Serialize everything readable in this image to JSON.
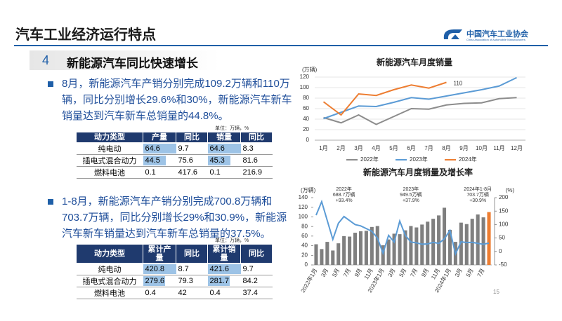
{
  "header": {
    "title": "汽车工业经济运行特点",
    "logo": "中国汽车工业协会",
    "logo_en": "China Association of Automobile Manufacturers"
  },
  "section": {
    "number": 4,
    "title": "新能源汽车同比快速增长"
  },
  "bullets": [
    "8月，新能源汽车产销分别完成109.2万辆和110万辆，同比分别增长29.6%和30%，新能源汽车新车销量达到汽车新车总销量的44.8%。",
    "1-8月，新能源汽车产销分别完成700.8万辆和703.7万辆，同比分别增长29%和30.9%，新能源汽车新车销量达到汽车新车总销量的37.5%。"
  ],
  "tables": [
    {
      "unit": "单位：万辆，%",
      "headers": [
        "动力类型",
        "产量",
        "同比",
        "销量",
        "同比"
      ],
      "rows": [
        [
          "纯电动",
          64.6,
          9.7,
          64.6,
          8.3
        ],
        [
          "插电式混合动力",
          44.5,
          75.6,
          45.3,
          81.6
        ],
        [
          "燃料电池",
          0.1,
          417.6,
          0.1,
          216.9
        ]
      ]
    },
    {
      "unit": "单位：万辆，%",
      "headers": [
        "动力类型",
        "累计产量",
        "同比",
        "累计销量",
        "同比"
      ],
      "rows": [
        [
          "纯电动",
          420.8,
          8.7,
          421.6,
          9.7
        ],
        [
          "插电式混合动力",
          279.6,
          79.3,
          281.7,
          84.2
        ],
        [
          "燃料电池",
          0.4,
          42,
          0.4,
          37.4
        ]
      ]
    }
  ],
  "chart_data": [
    {
      "type": "line",
      "title": "新能源汽车月度销量",
      "ylabel": "(万辆)",
      "categories": [
        "1月",
        "2月",
        "3月",
        "4月",
        "5月",
        "6月",
        "7月",
        "8月",
        "9月",
        "10月",
        "11月",
        "12月"
      ],
      "series": [
        {
          "name": "2022年",
          "color": "#8c8c8c",
          "values": [
            43,
            33,
            48,
            30,
            45,
            60,
            59,
            67,
            70,
            71,
            79,
            81
          ]
        },
        {
          "name": "2023年",
          "color": "#5b9bd5",
          "values": [
            41,
            53,
            65,
            64,
            72,
            81,
            78,
            84,
            90,
            96,
            103,
            119
          ]
        },
        {
          "name": "2024年",
          "color": "#ed7d31",
          "values": [
            73,
            48,
            88,
            85,
            96,
            105,
            99,
            110,
            null,
            null,
            null,
            null
          ],
          "value_labels": [
            null,
            null,
            null,
            null,
            null,
            null,
            null,
            "110",
            null,
            null,
            null,
            null
          ]
        }
      ],
      "ylim": [
        0,
        120
      ],
      "yticks": [
        0,
        20,
        40,
        60,
        80,
        100,
        120
      ],
      "grid": true,
      "legend": "bottom"
    },
    {
      "type": "combo",
      "title": "新能源汽车月度销量及增长率",
      "ylabel": "(万辆)",
      "y2label": "(%)",
      "categories": [
        "2022年1月",
        null,
        "3月",
        null,
        "5月",
        null,
        "7月",
        null,
        "9月",
        null,
        "11月",
        null,
        "2023年1月",
        null,
        "3月",
        null,
        "5月",
        null,
        "7月",
        null,
        "9月",
        null,
        "11月",
        null,
        "2024年1月",
        null,
        "3月",
        null,
        "5月",
        null,
        "7月",
        null
      ],
      "series": [
        {
          "type": "bar",
          "colors": [
            "#7f7f7f",
            "#7f7f7f",
            "#7f7f7f",
            "#7f7f7f",
            "#7f7f7f",
            "#7f7f7f",
            "#7f7f7f",
            "#7f7f7f",
            "#7f7f7f",
            "#7f7f7f",
            "#7f7f7f",
            "#7f7f7f",
            "#7f7f7f",
            "#7f7f7f",
            "#7f7f7f",
            "#7f7f7f",
            "#7f7f7f",
            "#7f7f7f",
            "#7f7f7f",
            "#7f7f7f",
            "#7f7f7f",
            "#7f7f7f",
            "#7f7f7f",
            "#7f7f7f",
            "#7f7f7f",
            "#7f7f7f",
            "#7f7f7f",
            "#7f7f7f",
            "#7f7f7f",
            "#7f7f7f",
            "#7f7f7f",
            "#ed7d31"
          ],
          "values": [
            43,
            33,
            48,
            30,
            45,
            60,
            59,
            67,
            70,
            71,
            79,
            81,
            41,
            53,
            65,
            64,
            72,
            81,
            78,
            84,
            90,
            96,
            103,
            119,
            73,
            48,
            88,
            85,
            96,
            105,
            99,
            110
          ]
        },
        {
          "type": "line",
          "axis": "y2",
          "color": "#5b9bd5",
          "values": [
            135,
            185,
            115,
            45,
            105,
            130,
            115,
            100,
            95,
            85,
            75,
            50,
            -6,
            60,
            35,
            113,
            60,
            35,
            32,
            27,
            28,
            34,
            30,
            47,
            78,
            -9,
            36,
            33,
            34,
            30,
            27,
            31
          ]
        }
      ],
      "annotations": [
        [
          "2022年",
          "688.7万辆",
          "+93.4%"
        ],
        [
          "2023年",
          "949.5万辆",
          "+37.9%"
        ],
        [
          "2024年1-8月",
          "703.7万辆",
          "+30.9%"
        ]
      ],
      "ylim": [
        0,
        140
      ],
      "yticks": [
        0,
        20,
        40,
        60,
        80,
        100,
        120,
        140
      ],
      "y2lim": [
        -50,
        200
      ],
      "y2ticks": [
        -50,
        0,
        50,
        100,
        150,
        200
      ]
    }
  ],
  "page_number": 15
}
